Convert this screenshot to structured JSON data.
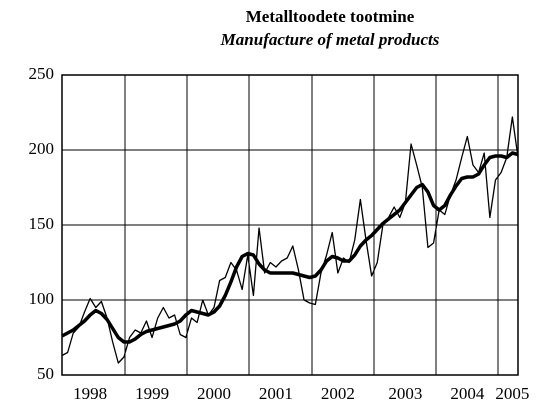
{
  "chart_data": {
    "type": "line",
    "title": "Metalltoodete tootmine",
    "subtitle": "Manufacture of metal products",
    "categories": [
      null,
      null,
      null,
      null,
      null,
      "1998",
      null,
      null,
      null,
      null,
      null,
      null,
      null,
      null,
      null,
      null,
      "1999",
      null,
      null,
      null,
      null,
      null,
      null,
      null,
      null,
      null,
      null,
      "2000",
      null,
      null,
      null,
      null,
      null,
      null,
      null,
      null,
      null,
      null,
      "2001",
      null,
      null,
      null,
      null,
      null,
      null,
      null,
      null,
      null,
      null,
      "2002",
      null,
      null,
      null,
      null,
      null,
      null,
      null,
      null,
      null,
      null,
      null,
      "2003",
      null,
      null,
      null,
      null,
      null,
      null,
      null,
      null,
      null,
      null,
      "2004",
      null,
      null,
      null,
      null,
      null,
      null,
      null,
      "2005",
      null
    ],
    "series": [
      {
        "color": "#000000",
        "width": 1.3,
        "values": [
          63,
          65,
          78,
          82,
          92,
          101,
          95,
          99,
          88,
          72,
          58,
          62,
          75,
          80,
          78,
          86,
          75,
          88,
          95,
          88,
          90,
          77,
          75,
          88,
          85,
          100,
          90,
          95,
          113,
          115,
          125,
          120,
          107,
          130,
          103,
          148,
          118,
          125,
          122,
          126,
          128,
          136,
          120,
          100,
          98,
          97,
          118,
          130,
          145,
          118,
          128,
          125,
          140,
          167,
          140,
          116,
          125,
          150,
          155,
          162,
          155,
          165,
          204,
          190,
          175,
          135,
          138,
          160,
          157,
          170,
          180,
          195,
          209,
          190,
          185,
          198,
          155,
          180,
          185,
          195,
          222,
          195
        ]
      },
      {
        "color": "#000000",
        "width": 3.5,
        "values": [
          76,
          78,
          80,
          83,
          86,
          90,
          93,
          91,
          87,
          81,
          75,
          72,
          72,
          74,
          77,
          79,
          80,
          81,
          82,
          83,
          84,
          86,
          90,
          93,
          92,
          91,
          90,
          92,
          96,
          103,
          112,
          122,
          129,
          131,
          130,
          124,
          120,
          118,
          118,
          118,
          118,
          118,
          117,
          116,
          115,
          116,
          120,
          126,
          129,
          128,
          126,
          126,
          130,
          136,
          140,
          143,
          147,
          151,
          154,
          157,
          160,
          165,
          170,
          175,
          177,
          172,
          163,
          160,
          163,
          170,
          176,
          181,
          182,
          182,
          184,
          190,
          195,
          196,
          196,
          195,
          198,
          197
        ]
      }
    ],
    "ylim": [
      50,
      250
    ],
    "yticks": [
      50,
      100,
      150,
      200,
      250
    ],
    "grid": true
  }
}
